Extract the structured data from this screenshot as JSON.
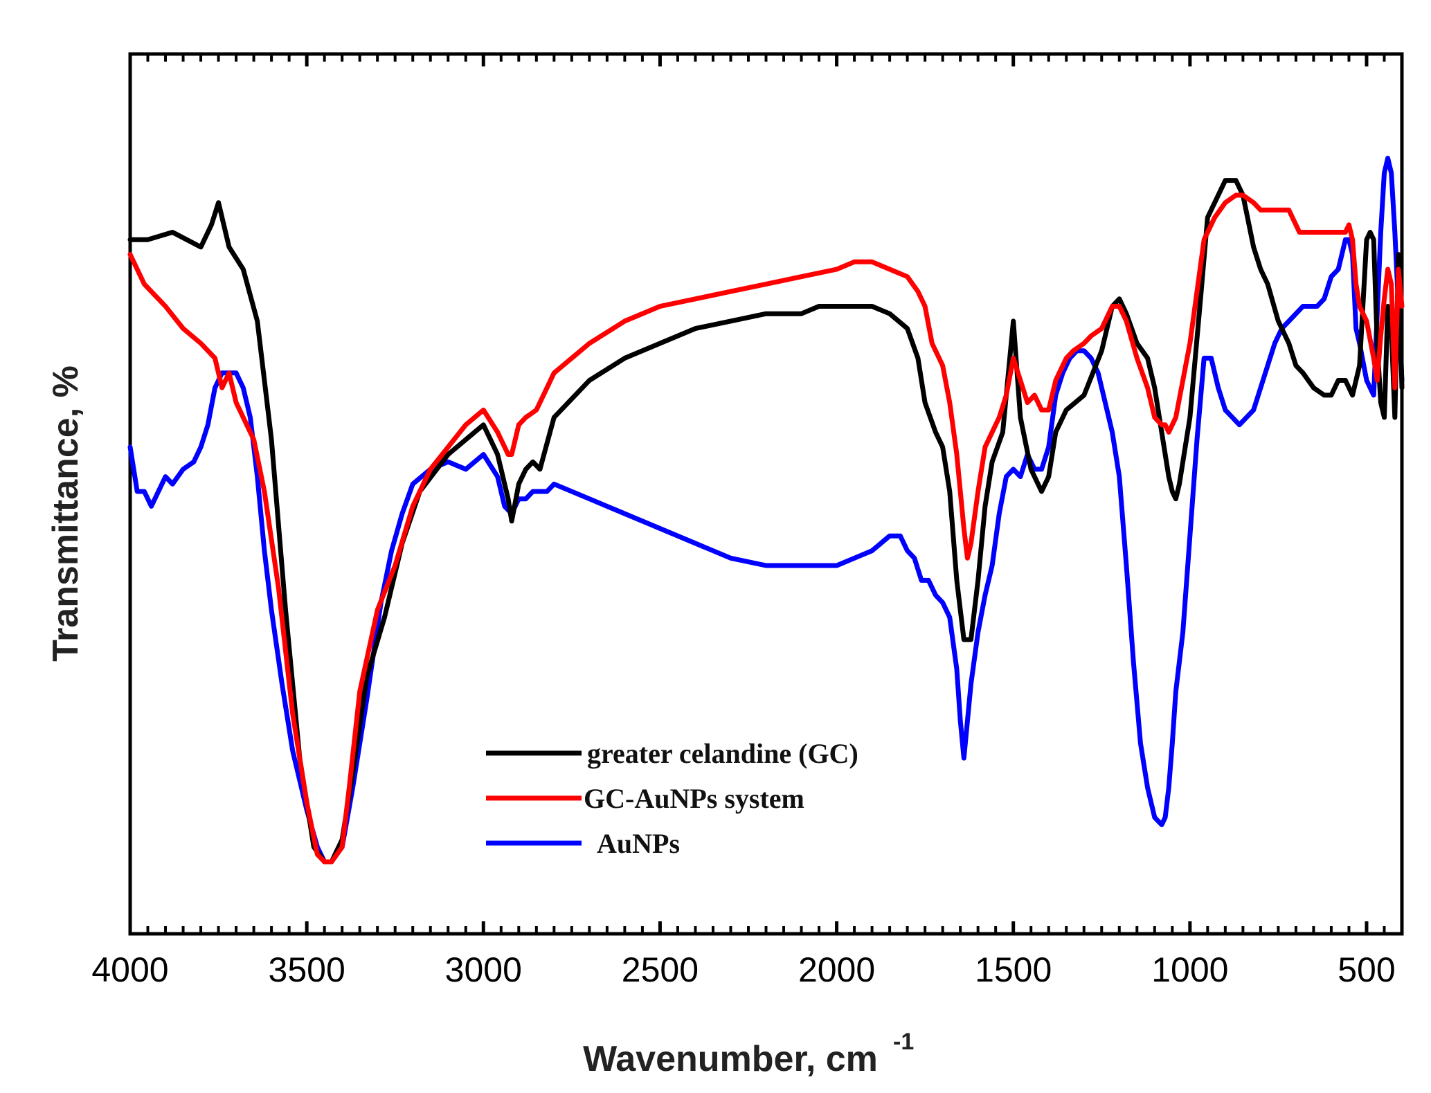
{
  "chart_data": {
    "type": "line",
    "title": "",
    "xlabel": "Wavenumber, cm",
    "xlabel_superscript": "-1",
    "ylabel": "Transmittance, %",
    "xlim": [
      4000,
      400
    ],
    "ylim": [
      0,
      100
    ],
    "x_reversed": true,
    "y_ticks_labeled": false,
    "xticks": [
      4000,
      3500,
      3000,
      2500,
      2000,
      1500,
      1000,
      500
    ],
    "xtick_labels": [
      "4000",
      "3500",
      "3000",
      "2500",
      "2000",
      "1500",
      "1000",
      "500"
    ],
    "grid": false,
    "legend_position": "lower-center",
    "series": [
      {
        "name": "greater celandine (GC)",
        "color": "#000000",
        "x": [
          4000,
          3950,
          3880,
          3800,
          3770,
          3750,
          3720,
          3680,
          3640,
          3600,
          3560,
          3520,
          3480,
          3450,
          3430,
          3400,
          3370,
          3330,
          3280,
          3230,
          3180,
          3100,
          3050,
          3000,
          2960,
          2930,
          2920,
          2900,
          2880,
          2860,
          2840,
          2800,
          2700,
          2600,
          2500,
          2400,
          2300,
          2200,
          2150,
          2100,
          2050,
          2000,
          1950,
          1900,
          1850,
          1800,
          1770,
          1750,
          1720,
          1700,
          1680,
          1660,
          1640,
          1620,
          1600,
          1580,
          1560,
          1530,
          1500,
          1480,
          1450,
          1420,
          1400,
          1380,
          1350,
          1300,
          1250,
          1220,
          1200,
          1180,
          1150,
          1120,
          1100,
          1080,
          1060,
          1050,
          1040,
          1030,
          1000,
          970,
          950,
          920,
          900,
          880,
          870,
          850,
          820,
          800,
          780,
          750,
          720,
          700,
          680,
          650,
          620,
          600,
          580,
          560,
          540,
          520,
          500,
          490,
          480,
          470,
          460,
          450,
          440,
          430,
          420,
          410,
          400
        ],
        "y": [
          84,
          84,
          85,
          83,
          86,
          89,
          83,
          80,
          73,
          57,
          34,
          14,
          2,
          0,
          0,
          3,
          12,
          25,
          33,
          43,
          50,
          55,
          57,
          59,
          55,
          49,
          46,
          51,
          53,
          54,
          53,
          60,
          65,
          68,
          70,
          72,
          73,
          74,
          74,
          74,
          75,
          75,
          75,
          75,
          74,
          72,
          68,
          62,
          58,
          56,
          50,
          38,
          30,
          30,
          38,
          48,
          54,
          58,
          73,
          60,
          53,
          50,
          52,
          58,
          61,
          63,
          69,
          75,
          76,
          74,
          70,
          68,
          64,
          58,
          52,
          50,
          49,
          51,
          60,
          76,
          87,
          90,
          92,
          92,
          92,
          90,
          83,
          80,
          78,
          73,
          70,
          67,
          66,
          64,
          63,
          63,
          65,
          65,
          63,
          67,
          84,
          85,
          84,
          70,
          62,
          60,
          75,
          72,
          60,
          82,
          64
        ]
      },
      {
        "name": "GC-AuNPs system",
        "color": "#ff0000",
        "x": [
          4000,
          3960,
          3900,
          3850,
          3800,
          3760,
          3740,
          3720,
          3700,
          3680,
          3650,
          3620,
          3580,
          3540,
          3500,
          3470,
          3450,
          3430,
          3400,
          3380,
          3350,
          3300,
          3250,
          3200,
          3150,
          3100,
          3050,
          3000,
          2960,
          2930,
          2920,
          2900,
          2880,
          2850,
          2800,
          2700,
          2600,
          2500,
          2400,
          2300,
          2200,
          2100,
          2000,
          1950,
          1900,
          1850,
          1800,
          1770,
          1750,
          1730,
          1700,
          1680,
          1660,
          1640,
          1630,
          1620,
          1600,
          1580,
          1560,
          1540,
          1520,
          1500,
          1480,
          1460,
          1440,
          1420,
          1400,
          1380,
          1350,
          1330,
          1300,
          1280,
          1250,
          1220,
          1200,
          1180,
          1150,
          1120,
          1100,
          1080,
          1070,
          1060,
          1040,
          1000,
          960,
          930,
          900,
          870,
          850,
          820,
          800,
          760,
          720,
          690,
          680,
          660,
          620,
          580,
          560,
          550,
          540,
          530,
          520,
          500,
          480,
          470,
          460,
          450,
          440,
          430,
          420,
          410,
          400
        ],
        "y": [
          82,
          78,
          75,
          72,
          70,
          68,
          64,
          66,
          62,
          60,
          57,
          50,
          37,
          20,
          8,
          1,
          0,
          0,
          2,
          10,
          23,
          34,
          40,
          48,
          53,
          56,
          59,
          61,
          58,
          55,
          55,
          59,
          60,
          61,
          66,
          70,
          73,
          75,
          76,
          77,
          78,
          79,
          80,
          81,
          81,
          80,
          79,
          77,
          75,
          70,
          67,
          62,
          55,
          45,
          41,
          43,
          50,
          56,
          58,
          60,
          63,
          68,
          65,
          62,
          63,
          61,
          61,
          65,
          68,
          69,
          70,
          71,
          72,
          75,
          75,
          73,
          68,
          64,
          60,
          59,
          59,
          58,
          60,
          70,
          84,
          87,
          89,
          90,
          90,
          89,
          88,
          88,
          88,
          85,
          85,
          85,
          85,
          85,
          85,
          86,
          84,
          78,
          75,
          73,
          68,
          65,
          71,
          76,
          80,
          78,
          64,
          80,
          75
        ]
      },
      {
        "name": "AuNPs",
        "color": "#0000ff",
        "x": [
          4000,
          3980,
          3960,
          3940,
          3920,
          3900,
          3880,
          3850,
          3820,
          3800,
          3780,
          3760,
          3740,
          3700,
          3680,
          3660,
          3640,
          3620,
          3600,
          3570,
          3540,
          3500,
          3470,
          3450,
          3430,
          3400,
          3370,
          3330,
          3290,
          3260,
          3230,
          3200,
          3150,
          3100,
          3050,
          3000,
          2960,
          2940,
          2920,
          2900,
          2880,
          2860,
          2840,
          2820,
          2800,
          2700,
          2600,
          2500,
          2400,
          2300,
          2200,
          2100,
          2050,
          2000,
          1950,
          1900,
          1850,
          1820,
          1800,
          1780,
          1760,
          1740,
          1720,
          1700,
          1680,
          1660,
          1650,
          1640,
          1630,
          1620,
          1600,
          1580,
          1560,
          1540,
          1520,
          1500,
          1480,
          1460,
          1440,
          1420,
          1400,
          1380,
          1360,
          1340,
          1320,
          1300,
          1280,
          1260,
          1240,
          1220,
          1200,
          1180,
          1160,
          1140,
          1120,
          1100,
          1080,
          1070,
          1060,
          1050,
          1040,
          1020,
          1000,
          980,
          960,
          940,
          930,
          920,
          900,
          880,
          860,
          840,
          820,
          800,
          780,
          760,
          740,
          720,
          700,
          680,
          660,
          640,
          620,
          600,
          580,
          560,
          550,
          540,
          530,
          520,
          500,
          480,
          460,
          450,
          440,
          430,
          420,
          410,
          400
        ],
        "y": [
          56,
          50,
          50,
          48,
          50,
          52,
          51,
          53,
          54,
          56,
          59,
          64,
          66,
          66,
          64,
          60,
          52,
          42,
          34,
          24,
          15,
          7,
          2,
          0,
          0,
          2,
          10,
          22,
          35,
          42,
          47,
          51,
          53,
          54,
          53,
          55,
          52,
          48,
          47,
          49,
          49,
          50,
          50,
          50,
          51,
          49,
          47,
          45,
          43,
          41,
          40,
          40,
          40,
          40,
          41,
          42,
          44,
          44,
          42,
          41,
          38,
          38,
          36,
          35,
          33,
          26,
          19,
          14,
          19,
          24,
          31,
          36,
          40,
          47,
          52,
          53,
          52,
          55,
          53,
          53,
          56,
          63,
          66,
          68,
          69,
          69,
          68,
          66,
          62,
          58,
          52,
          40,
          27,
          16,
          10,
          6,
          5,
          6,
          10,
          16,
          23,
          31,
          44,
          57,
          68,
          68,
          66,
          64,
          61,
          60,
          59,
          60,
          61,
          64,
          67,
          70,
          72,
          73,
          74,
          75,
          75,
          75,
          76,
          79,
          80,
          84,
          84,
          82,
          72,
          70,
          65,
          63,
          85,
          93,
          95,
          93,
          85,
          75,
          65
        ]
      }
    ]
  }
}
